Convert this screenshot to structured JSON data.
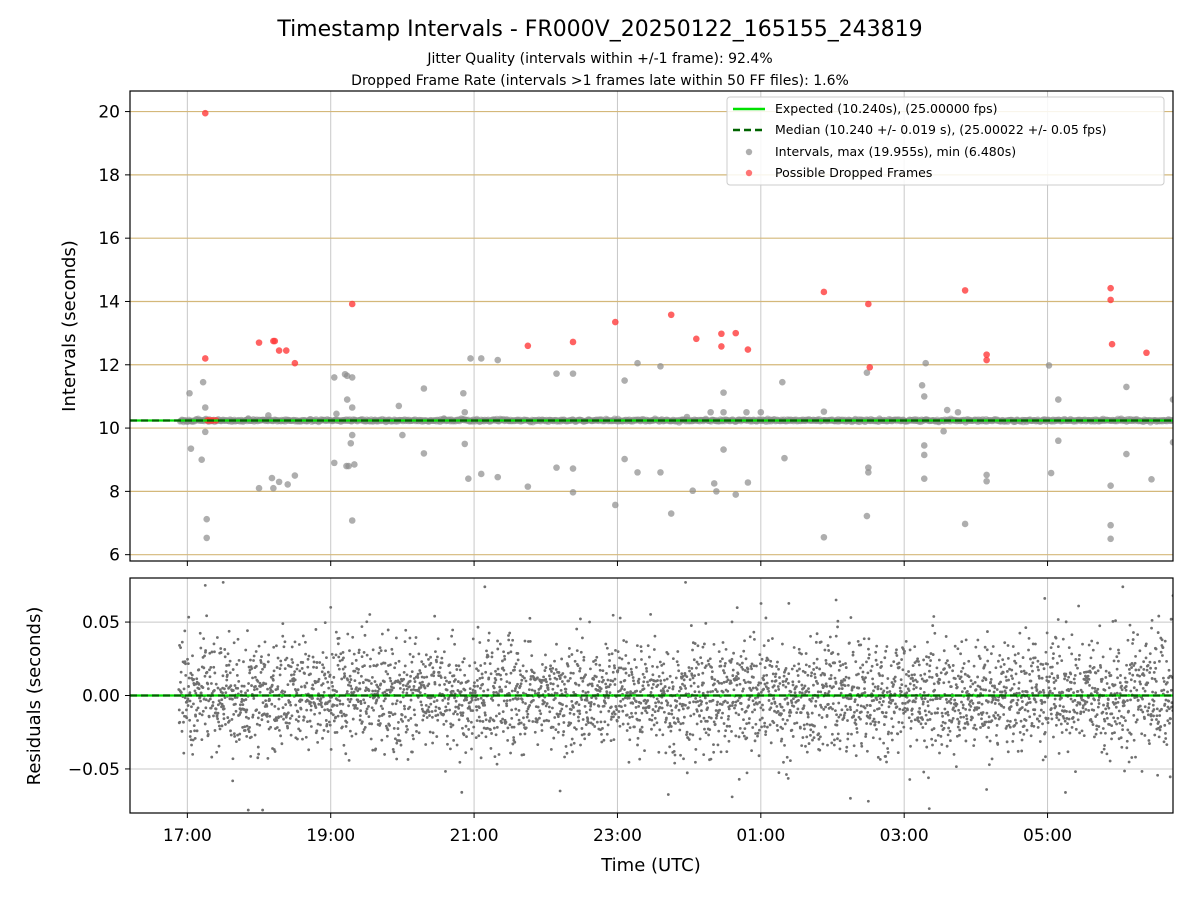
{
  "chart_data": [
    {
      "type": "scatter",
      "title": "Timestamp Intervals - FR000V_20250122_165155_243819",
      "subtitle_lines": [
        "Jitter Quality (intervals within +/-1 frame): 92.4%",
        "Dropped Frame Rate (intervals >1 frames late within 50 FF files): 1.6%"
      ],
      "ylabel": "Intervals (seconds)",
      "ylim": [
        5.8,
        20.65
      ],
      "yticks": [
        6,
        8,
        10,
        12,
        14,
        16,
        18,
        20
      ],
      "xlim_hours": [
        16.2,
        30.75
      ],
      "grid": true,
      "reference_lines": {
        "expected": 10.24,
        "median": 10.24
      },
      "legend_position": "top-right",
      "legend": [
        {
          "label": "Expected (10.240s), (25.00000 fps)",
          "style": "line",
          "color": "#00e000"
        },
        {
          "label": "Median (10.240 +/- 0.019 s), (25.00022 +/- 0.05 fps)",
          "style": "dashed",
          "color": "#006400"
        },
        {
          "label": "Intervals, max (19.955s), min (6.480s)",
          "style": "marker",
          "color": "#8c8c8c"
        },
        {
          "label": "Possible Dropped Frames",
          "style": "marker",
          "color": "#ff3b3b"
        }
      ],
      "baseline_series": {
        "name": "Intervals",
        "x_start": 16.9,
        "x_end": 30.75,
        "value": 10.24
      },
      "intervals": [
        [
          17.03,
          11.1
        ],
        [
          17.22,
          11.45
        ],
        [
          17.25,
          10.65
        ],
        [
          17.05,
          9.35
        ],
        [
          17.2,
          9.0
        ],
        [
          17.25,
          9.88
        ],
        [
          17.27,
          7.12
        ],
        [
          17.27,
          6.53
        ],
        [
          18.13,
          10.4
        ],
        [
          18.18,
          8.42
        ],
        [
          18.2,
          8.1
        ],
        [
          18.28,
          8.3
        ],
        [
          18.4,
          8.22
        ],
        [
          18.5,
          8.5
        ],
        [
          17.85,
          10.3
        ],
        [
          18.0,
          8.1
        ],
        [
          19.05,
          11.6
        ],
        [
          19.05,
          8.9
        ],
        [
          19.08,
          10.45
        ],
        [
          19.2,
          11.7
        ],
        [
          19.23,
          11.65
        ],
        [
          19.23,
          10.9
        ],
        [
          19.22,
          8.8
        ],
        [
          19.25,
          8.8
        ],
        [
          19.3,
          11.6
        ],
        [
          19.3,
          10.65
        ],
        [
          19.28,
          9.52
        ],
        [
          19.3,
          9.78
        ],
        [
          19.33,
          8.85
        ],
        [
          19.3,
          7.08
        ],
        [
          19.95,
          10.7
        ],
        [
          20.0,
          9.78
        ],
        [
          20.3,
          11.25
        ],
        [
          20.3,
          9.2
        ],
        [
          20.58,
          10.3
        ],
        [
          20.85,
          11.1
        ],
        [
          20.87,
          10.5
        ],
        [
          20.87,
          9.5
        ],
        [
          20.92,
          8.4
        ],
        [
          20.95,
          12.2
        ],
        [
          21.1,
          12.2
        ],
        [
          21.1,
          8.55
        ],
        [
          21.33,
          12.15
        ],
        [
          21.33,
          8.45
        ],
        [
          21.75,
          8.15
        ],
        [
          22.15,
          11.72
        ],
        [
          22.15,
          8.75
        ],
        [
          22.38,
          11.72
        ],
        [
          22.38,
          8.72
        ],
        [
          22.38,
          7.97
        ],
        [
          22.97,
          7.57
        ],
        [
          23.1,
          11.5
        ],
        [
          23.1,
          9.02
        ],
        [
          23.28,
          12.05
        ],
        [
          23.28,
          8.6
        ],
        [
          23.6,
          11.95
        ],
        [
          23.6,
          8.6
        ],
        [
          23.75,
          7.3
        ],
        [
          23.97,
          10.35
        ],
        [
          24.05,
          8.02
        ],
        [
          24.3,
          10.5
        ],
        [
          24.35,
          8.25
        ],
        [
          24.38,
          8.0
        ],
        [
          24.48,
          11.12
        ],
        [
          24.48,
          9.32
        ],
        [
          24.48,
          10.5
        ],
        [
          24.65,
          7.9
        ],
        [
          24.8,
          10.5
        ],
        [
          24.82,
          8.28
        ],
        [
          25.0,
          10.5
        ],
        [
          25.3,
          11.45
        ],
        [
          25.33,
          9.05
        ],
        [
          25.88,
          10.52
        ],
        [
          25.88,
          6.55
        ],
        [
          26.48,
          11.75
        ],
        [
          26.5,
          8.75
        ],
        [
          26.5,
          8.6
        ],
        [
          26.48,
          7.22
        ],
        [
          27.25,
          11.35
        ],
        [
          27.28,
          11.0
        ],
        [
          27.28,
          9.45
        ],
        [
          27.28,
          9.15
        ],
        [
          27.28,
          8.4
        ],
        [
          27.3,
          12.05
        ],
        [
          27.6,
          10.57
        ],
        [
          27.55,
          9.9
        ],
        [
          27.75,
          10.5
        ],
        [
          27.85,
          6.97
        ],
        [
          28.15,
          8.52
        ],
        [
          28.15,
          8.32
        ],
        [
          29.02,
          11.98
        ],
        [
          29.05,
          8.58
        ],
        [
          29.15,
          10.9
        ],
        [
          29.15,
          9.6
        ],
        [
          29.88,
          8.18
        ],
        [
          29.88,
          6.93
        ],
        [
          29.88,
          6.5
        ],
        [
          30.1,
          11.3
        ],
        [
          30.1,
          9.18
        ],
        [
          30.45,
          8.38
        ],
        [
          30.75,
          10.9
        ],
        [
          30.75,
          9.55
        ]
      ],
      "dropped": [
        [
          17.25,
          19.95
        ],
        [
          17.25,
          12.2
        ],
        [
          17.28,
          10.24
        ],
        [
          17.3,
          10.24
        ],
        [
          17.33,
          10.24
        ],
        [
          17.36,
          10.24
        ],
        [
          17.4,
          10.24
        ],
        [
          18.0,
          12.7
        ],
        [
          18.2,
          12.75
        ],
        [
          18.22,
          12.75
        ],
        [
          18.28,
          12.45
        ],
        [
          18.38,
          12.45
        ],
        [
          18.5,
          12.05
        ],
        [
          19.3,
          13.92
        ],
        [
          21.75,
          12.6
        ],
        [
          22.38,
          12.72
        ],
        [
          22.97,
          13.35
        ],
        [
          23.75,
          13.58
        ],
        [
          24.1,
          12.82
        ],
        [
          24.45,
          12.98
        ],
        [
          24.45,
          12.58
        ],
        [
          24.65,
          13.0
        ],
        [
          24.82,
          12.48
        ],
        [
          25.88,
          14.3
        ],
        [
          26.5,
          13.92
        ],
        [
          26.52,
          11.92
        ],
        [
          27.85,
          14.35
        ],
        [
          28.15,
          12.32
        ],
        [
          28.15,
          12.15
        ],
        [
          29.88,
          14.42
        ],
        [
          29.88,
          14.05
        ],
        [
          29.9,
          12.65
        ],
        [
          30.38,
          12.38
        ]
      ]
    },
    {
      "type": "scatter",
      "ylabel": "Residuals (seconds)",
      "xlabel": "Time (UTC)",
      "ylim": [
        -0.08,
        0.08
      ],
      "yticks": [
        0.05,
        0.0,
        -0.05
      ],
      "ytick_labels": [
        "0.05",
        "0.00",
        "−0.05"
      ],
      "xticks_hours": [
        17,
        19,
        21,
        23,
        25,
        27,
        29
      ],
      "xtick_labels": [
        "17:00",
        "19:00",
        "21:00",
        "23:00",
        "01:00",
        "03:00",
        "05:00"
      ],
      "xlim_hours": [
        16.2,
        30.75
      ],
      "reference_lines": {
        "expected": 0.0,
        "median": 0.0
      },
      "residual_series": {
        "name": "Residuals",
        "x_start": 16.88,
        "x_end": 30.75,
        "std": 0.019,
        "clip": 0.078,
        "count": 3900
      },
      "residual_outliers": [
        [
          17.25,
          0.075
        ],
        [
          17.5,
          0.077
        ],
        [
          17.85,
          -0.078
        ],
        [
          18.05,
          -0.078
        ],
        [
          19.0,
          0.06
        ],
        [
          20.45,
          0.054
        ],
        [
          21.15,
          0.074
        ],
        [
          22.2,
          -0.065
        ],
        [
          23.95,
          0.077
        ],
        [
          24.6,
          -0.069
        ],
        [
          26.05,
          0.065
        ],
        [
          26.25,
          -0.07
        ],
        [
          26.5,
          -0.072
        ],
        [
          27.35,
          -0.077
        ],
        [
          28.15,
          -0.064
        ],
        [
          29.25,
          -0.066
        ],
        [
          30.05,
          0.074
        ],
        [
          30.75,
          0.068
        ]
      ]
    }
  ],
  "colors": {
    "interval_marker": "#8c8c8c",
    "dropped_marker": "#ff3b3b",
    "expected_line": "#00e000",
    "median_line": "#006400",
    "top_hgrid": "#d4b87a",
    "grid": "#c8c8c8",
    "residual_marker": "#707070"
  }
}
